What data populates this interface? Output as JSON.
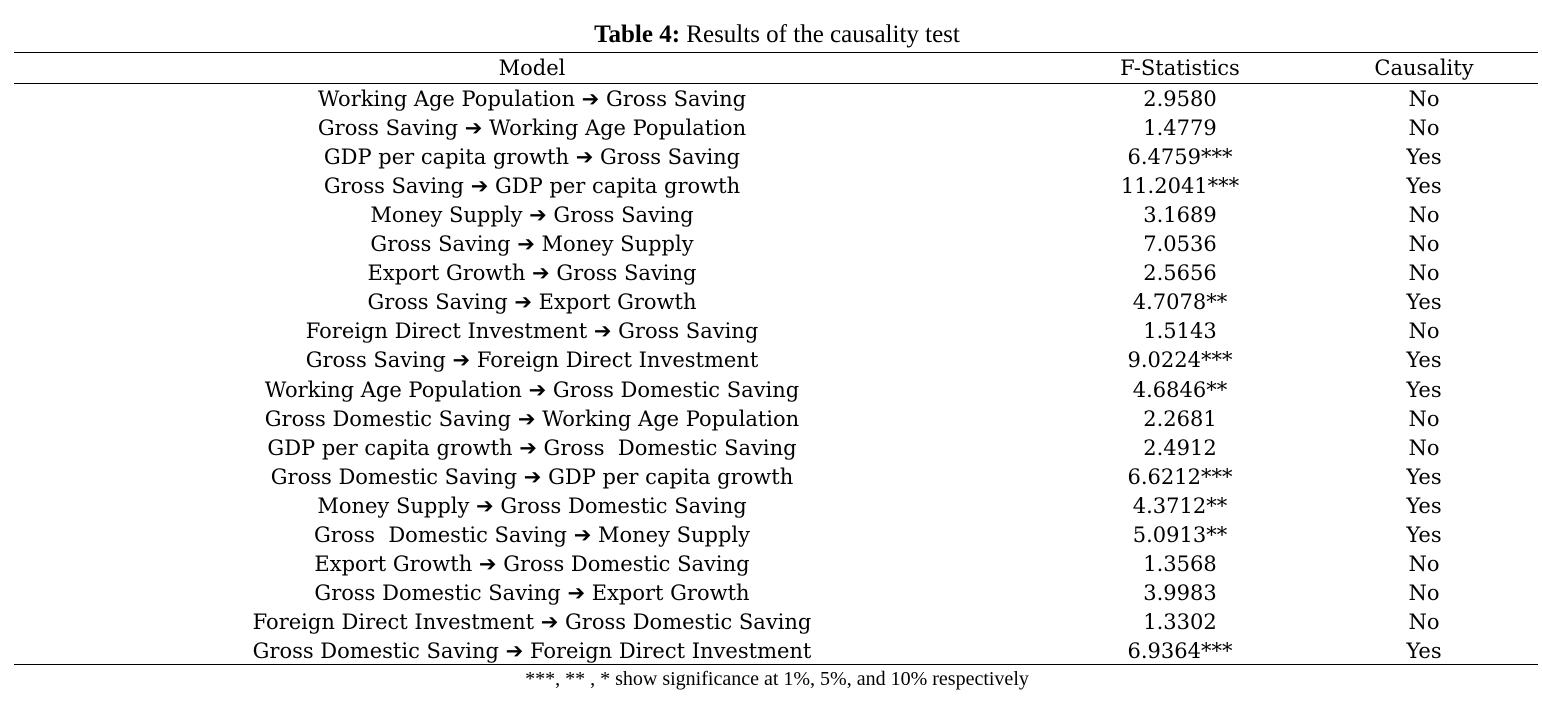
{
  "table": {
    "caption_label": "Table 4:",
    "caption_text": " Results of the causality test",
    "arrow_symbol": "➔",
    "headers": {
      "model": "Model",
      "f_statistics": "F-Statistics",
      "causality": "Causality"
    },
    "rows": [
      {
        "from": "Working Age Population",
        "to": "Gross Saving",
        "f": "2.9580",
        "causality": "No"
      },
      {
        "from": "Gross Saving",
        "to": "Working Age Population",
        "f": "1.4779",
        "causality": "No"
      },
      {
        "from": "GDP per capita growth",
        "to": "Gross Saving",
        "f": "6.4759***",
        "causality": "Yes"
      },
      {
        "from": "Gross Saving",
        "to": "GDP per capita growth",
        "f": "11.2041***",
        "causality": "Yes"
      },
      {
        "from": "Money Supply",
        "to": "Gross Saving",
        "f": "3.1689",
        "causality": "No"
      },
      {
        "from": "Gross Saving",
        "to": "Money Supply",
        "f": "7.0536",
        "causality": "No"
      },
      {
        "from": "Export Growth",
        "to": "Gross Saving",
        "f": "2.5656",
        "causality": "No"
      },
      {
        "from": "Gross Saving",
        "to": "Export Growth",
        "f": "4.7078**",
        "causality": "Yes"
      },
      {
        "from": "Foreign Direct Investment",
        "to": "Gross Saving",
        "f": "1.5143",
        "causality": "No"
      },
      {
        "from": "Gross Saving",
        "to": "Foreign Direct Investment",
        "f": "9.0224***",
        "causality": "Yes"
      },
      {
        "from": "Working Age Population",
        "to": "Gross Domestic Saving",
        "f": "4.6846**",
        "causality": "Yes"
      },
      {
        "from": "Gross Domestic Saving",
        "to": "Working Age Population",
        "f": "2.2681",
        "causality": "No"
      },
      {
        "from": "GDP per capita growth",
        "to": "Gross  Domestic Saving",
        "f": "2.4912",
        "causality": "No"
      },
      {
        "from": "Gross Domestic Saving",
        "to": "GDP per capita growth",
        "f": "6.6212***",
        "causality": "Yes"
      },
      {
        "from": "Money Supply",
        "to": "Gross Domestic Saving",
        "f": "4.3712**",
        "causality": "Yes"
      },
      {
        "from": "Gross  Domestic Saving",
        "to": "Money Supply",
        "f": "5.0913**",
        "causality": "Yes"
      },
      {
        "from": "Export Growth",
        "to": "Gross Domestic Saving",
        "f": "1.3568",
        "causality": "No"
      },
      {
        "from": "Gross Domestic Saving",
        "to": "Export Growth",
        "f": "3.9983",
        "causality": "No"
      },
      {
        "from": "Foreign Direct Investment",
        "to": "Gross Domestic Saving",
        "f": "1.3302",
        "causality": "No"
      },
      {
        "from": "Gross Domestic Saving",
        "to": "Foreign Direct Investment",
        "f": "6.9364***",
        "causality": "Yes"
      }
    ],
    "note": "***, ** , * show significance at 1%, 5%, and 10% respectively"
  }
}
